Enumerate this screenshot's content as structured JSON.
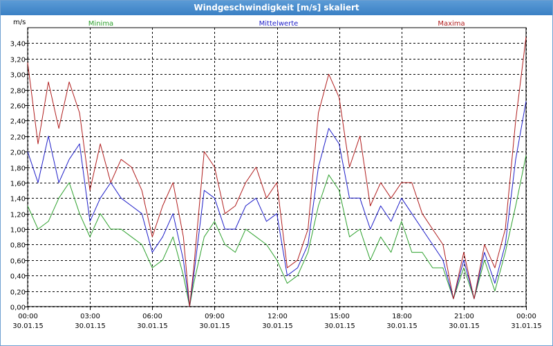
{
  "window": {
    "title": "Windgeschwindigkeit [m/s] skaliert"
  },
  "chart_data": {
    "type": "line",
    "title": "Windgeschwindigkeit [m/s] skaliert",
    "ylabel": "m/s",
    "ylim": [
      0,
      3.6
    ],
    "xlim": [
      "30.01.15 00:00",
      "31.01.15 00:00"
    ],
    "grid": true,
    "legend": "top",
    "y_ticks": [
      "0,00",
      "0,20",
      "0,40",
      "0,60",
      "0,80",
      "1,00",
      "1,20",
      "1,40",
      "1,60",
      "1,80",
      "2,00",
      "2,20",
      "2,40",
      "2,60",
      "2,80",
      "3,00",
      "3,20",
      "3,40"
    ],
    "x_ticks": [
      {
        "time": "00:00",
        "date": "30.01.15"
      },
      {
        "time": "03:00",
        "date": "30.01.15"
      },
      {
        "time": "06:00",
        "date": "30.01.15"
      },
      {
        "time": "09:00",
        "date": "30.01.15"
      },
      {
        "time": "12:00",
        "date": "30.01.15"
      },
      {
        "time": "15:00",
        "date": "30.01.15"
      },
      {
        "time": "18:00",
        "date": "30.01.15"
      },
      {
        "time": "21:00",
        "date": "30.01.15"
      },
      {
        "time": "00:00",
        "date": "31.01.15"
      }
    ],
    "x_hours": [
      0.0,
      0.5,
      1.0,
      1.5,
      2.0,
      2.5,
      3.0,
      3.5,
      4.0,
      4.5,
      5.0,
      5.5,
      6.0,
      6.5,
      7.0,
      7.5,
      7.8,
      8.0,
      8.5,
      9.0,
      9.5,
      10.0,
      10.5,
      11.0,
      11.5,
      12.0,
      12.5,
      13.0,
      13.5,
      14.0,
      14.5,
      15.0,
      15.5,
      16.0,
      16.5,
      17.0,
      17.5,
      18.0,
      18.5,
      19.0,
      19.5,
      20.0,
      20.5,
      21.0,
      21.5,
      22.0,
      22.5,
      23.0,
      23.5,
      24.0
    ],
    "series": [
      {
        "name": "Minima",
        "color": "#2ca02c",
        "values": [
          1.3,
          1.0,
          1.1,
          1.4,
          1.6,
          1.2,
          0.9,
          1.2,
          1.0,
          1.0,
          0.9,
          0.8,
          0.5,
          0.6,
          0.9,
          0.4,
          0.0,
          0.3,
          0.9,
          1.1,
          0.8,
          0.7,
          1.0,
          0.9,
          0.8,
          0.6,
          0.3,
          0.4,
          0.7,
          1.3,
          1.7,
          1.5,
          0.9,
          1.0,
          0.6,
          0.9,
          0.7,
          1.1,
          0.7,
          0.7,
          0.5,
          0.5,
          0.1,
          0.5,
          0.1,
          0.6,
          0.2,
          0.7,
          1.3,
          1.95
        ]
      },
      {
        "name": "Mittelwerte",
        "color": "#1c1cc8",
        "values": [
          2.0,
          1.6,
          2.2,
          1.6,
          1.9,
          2.1,
          1.1,
          1.4,
          1.6,
          1.4,
          1.3,
          1.2,
          0.7,
          0.9,
          1.2,
          0.6,
          0.0,
          0.4,
          1.5,
          1.4,
          1.0,
          1.0,
          1.3,
          1.4,
          1.1,
          1.2,
          0.4,
          0.5,
          0.8,
          1.8,
          2.3,
          2.1,
          1.4,
          1.4,
          1.0,
          1.3,
          1.1,
          1.4,
          1.2,
          1.0,
          0.8,
          0.6,
          0.1,
          0.6,
          0.1,
          0.7,
          0.3,
          0.8,
          1.9,
          2.65
        ]
      },
      {
        "name": "Maxima",
        "color": "#b01c1c",
        "values": [
          3.15,
          2.1,
          2.9,
          2.3,
          2.9,
          2.5,
          1.5,
          2.1,
          1.6,
          1.9,
          1.8,
          1.5,
          0.9,
          1.3,
          1.6,
          0.9,
          0.0,
          0.5,
          2.0,
          1.8,
          1.2,
          1.3,
          1.6,
          1.8,
          1.4,
          1.6,
          0.5,
          0.6,
          1.0,
          2.5,
          3.0,
          2.7,
          1.8,
          2.2,
          1.3,
          1.6,
          1.4,
          1.6,
          1.6,
          1.2,
          1.0,
          0.8,
          0.1,
          0.7,
          0.1,
          0.8,
          0.5,
          1.0,
          2.4,
          3.48
        ]
      }
    ]
  }
}
